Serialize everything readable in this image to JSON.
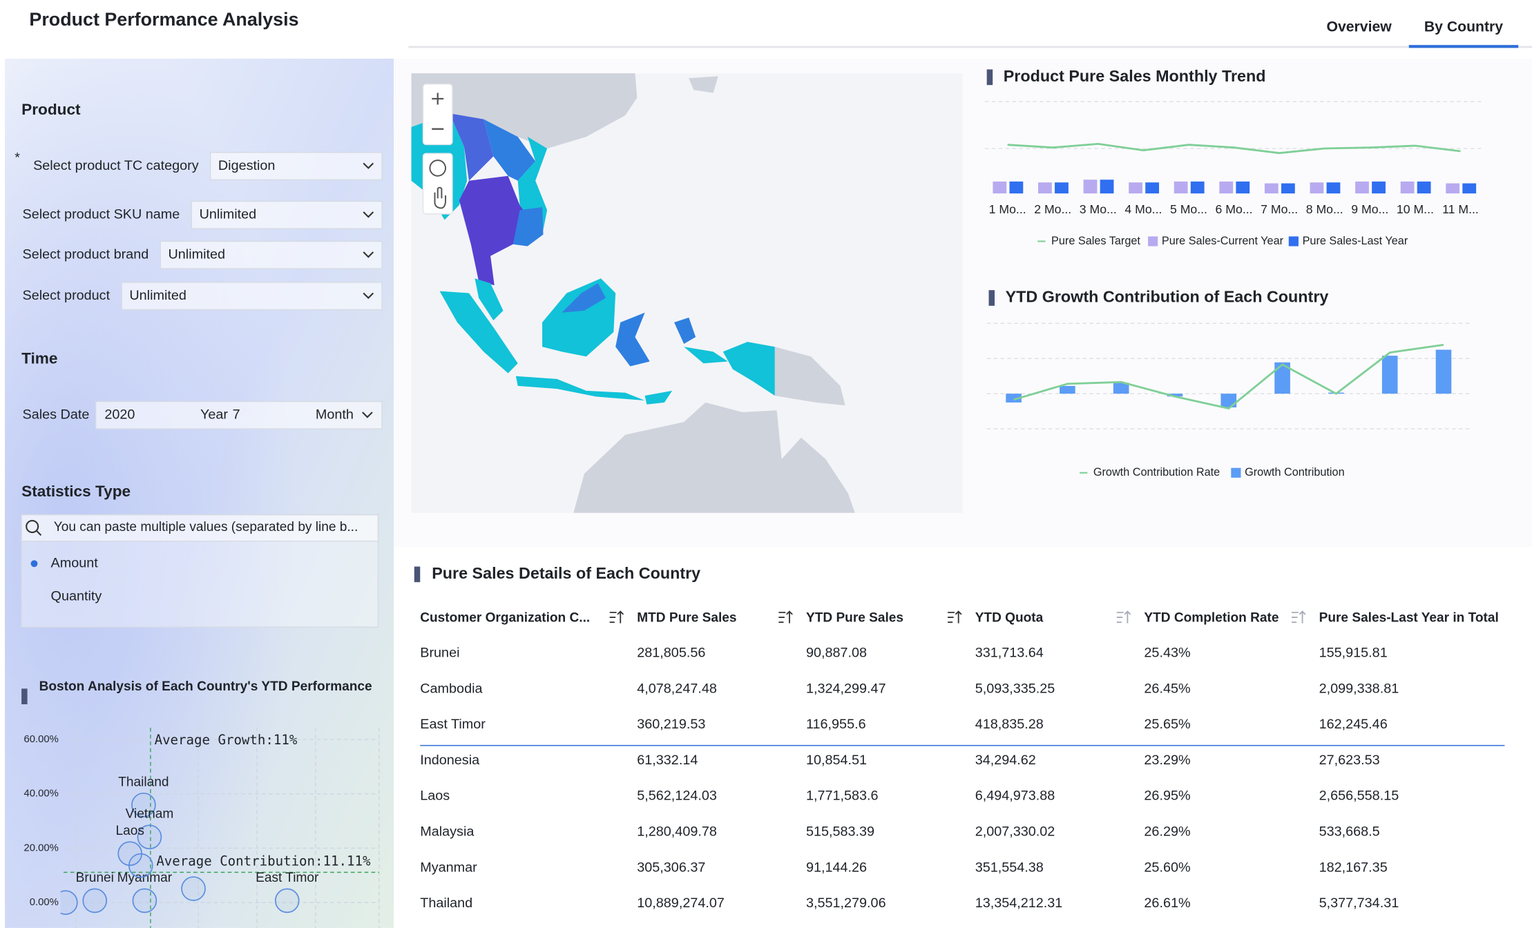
{
  "header": {
    "title": "Product Performance Analysis",
    "tabs": [
      "Overview",
      "By Country"
    ],
    "active_tab": 1
  },
  "filters": {
    "product": {
      "title": "Product",
      "fields": [
        {
          "label": "Select product TC category",
          "value": "Digestion",
          "required_mark": "*"
        },
        {
          "label": "Select product SKU name",
          "placeholder": "Unlimited"
        },
        {
          "label": "Select product brand",
          "placeholder": "Unlimited"
        },
        {
          "label": "Select product",
          "placeholder": "Unlimited"
        }
      ]
    },
    "time": {
      "title": "Time",
      "label": "Sales Date",
      "year": "2020",
      "year_unit": "Year",
      "month": "7",
      "month_unit": "Month"
    },
    "statistics": {
      "title": "Statistics Type",
      "search_placeholder": "You can paste multiple values (separated by line b...",
      "options": [
        "Amount",
        "Quantity"
      ],
      "selected": 0
    }
  },
  "chart_data": [
    {
      "type": "bar",
      "title": "Product Pure Sales Monthly Trend",
      "categories": [
        "1 Mo...",
        "2 Mo...",
        "3 Mo...",
        "4 Mo...",
        "5 Mo...",
        "6 Mo...",
        "7 Mo...",
        "8 Mo...",
        "9 Mo...",
        "10 M...",
        "11 M..."
      ],
      "series": [
        {
          "name": "Pure Sales Target",
          "type": "line",
          "color": "#7fcf97",
          "values": [
            53,
            50,
            54,
            47,
            53,
            50,
            44,
            49,
            50,
            52,
            46
          ]
        },
        {
          "name": "Pure Sales-Current Year",
          "type": "bar",
          "color": "#b8aaf0",
          "values": [
            13,
            12,
            15,
            12,
            13,
            13,
            11,
            12,
            13,
            13,
            11
          ]
        },
        {
          "name": "Pure Sales-Last Year",
          "type": "bar",
          "color": "#2f6ff0",
          "values": [
            13,
            12,
            15,
            12,
            13,
            13,
            11,
            12,
            13,
            13,
            11
          ]
        }
      ],
      "ylim": [
        0,
        100
      ]
    },
    {
      "type": "bar",
      "title": "YTD Growth Contribution of Each Country",
      "categories": [
        null,
        null,
        null,
        null,
        null,
        null,
        null,
        null,
        null
      ],
      "series": [
        {
          "name": "Growth Contribution Rate",
          "type": "line",
          "color": "#7fcf97",
          "values": [
            -0.17,
            0.28,
            0.33,
            -0.08,
            -0.42,
            0.83,
            0,
            1.17,
            1.39
          ]
        },
        {
          "name": "Growth Contribution",
          "type": "bar",
          "color": "#5b9cf6",
          "values": [
            -0.25,
            0.22,
            0.31,
            -0.08,
            -0.39,
            0.89,
            0.03,
            1.08,
            1.25
          ]
        }
      ],
      "ylim": [
        -1,
        2
      ]
    },
    {
      "type": "scatter",
      "title": "Boston Analysis of Each Country's YTD Performance",
      "labels": [
        "Thailand",
        "Vietnam",
        "Laos",
        "Myanmar",
        "Brunei",
        "East Timor",
        null,
        null,
        null
      ],
      "x": [
        8.3,
        10.6,
        3,
        8.7,
        -10.7,
        64.2,
        -22.1,
        27.7,
        7.2
      ],
      "values": [
        35.9,
        24.1,
        18,
        0.7,
        0.7,
        0.7,
        0,
        5.1,
        13.6
      ],
      "xlim": [
        -40,
        100
      ],
      "ylim": [
        0,
        60
      ],
      "yticks": [
        {
          "value": 0,
          "label": "0.00%"
        },
        {
          "value": 20,
          "label": "20.00%"
        },
        {
          "value": 40,
          "label": "40.00%"
        },
        {
          "value": 60,
          "label": "60.00%"
        }
      ],
      "average_growth": {
        "value": 11,
        "label": "Average Growth:11%"
      },
      "average_contribution": {
        "value": 11.11,
        "label": "Average Contribution:11.11%"
      },
      "color": "#5b8ede"
    }
  ],
  "table": {
    "title": "Pure Sales Details of Each Country",
    "columns": [
      "Customer Organization C...",
      "MTD Pure Sales",
      "YTD Pure Sales",
      "YTD Quota",
      "YTD Completion Rate",
      "Pure Sales-Last Year in Total"
    ],
    "rows": [
      [
        "Brunei",
        "281,805.56",
        "90,887.08",
        "331,713.64",
        "25.43%",
        "155,915.81"
      ],
      [
        "Cambodia",
        "4,078,247.48",
        "1,324,299.47",
        "5,093,335.25",
        "26.45%",
        "2,099,338.81"
      ],
      [
        "East Timor",
        "360,219.53",
        "116,955.6",
        "418,835.28",
        "25.65%",
        "162,245.46"
      ],
      [
        "Indonesia",
        "61,332.14",
        "10,854.51",
        "34,294.62",
        "23.29%",
        "27,623.53"
      ],
      [
        "Laos",
        "5,562,124.03",
        "1,771,583.6",
        "6,494,973.88",
        "26.95%",
        "2,656,558.15"
      ],
      [
        "Malaysia",
        "1,280,409.78",
        "515,583.39",
        "2,007,330.02",
        "26.29%",
        "533,668.5"
      ],
      [
        "Myanmar",
        "305,306.37",
        "91,144.26",
        "351,554.38",
        "25.60%",
        "182,167.35"
      ],
      [
        "Thailand",
        "10,889,274.07",
        "3,551,279.06",
        "13,354,212.31",
        "26.61%",
        "5,377,734.31"
      ]
    ]
  }
}
